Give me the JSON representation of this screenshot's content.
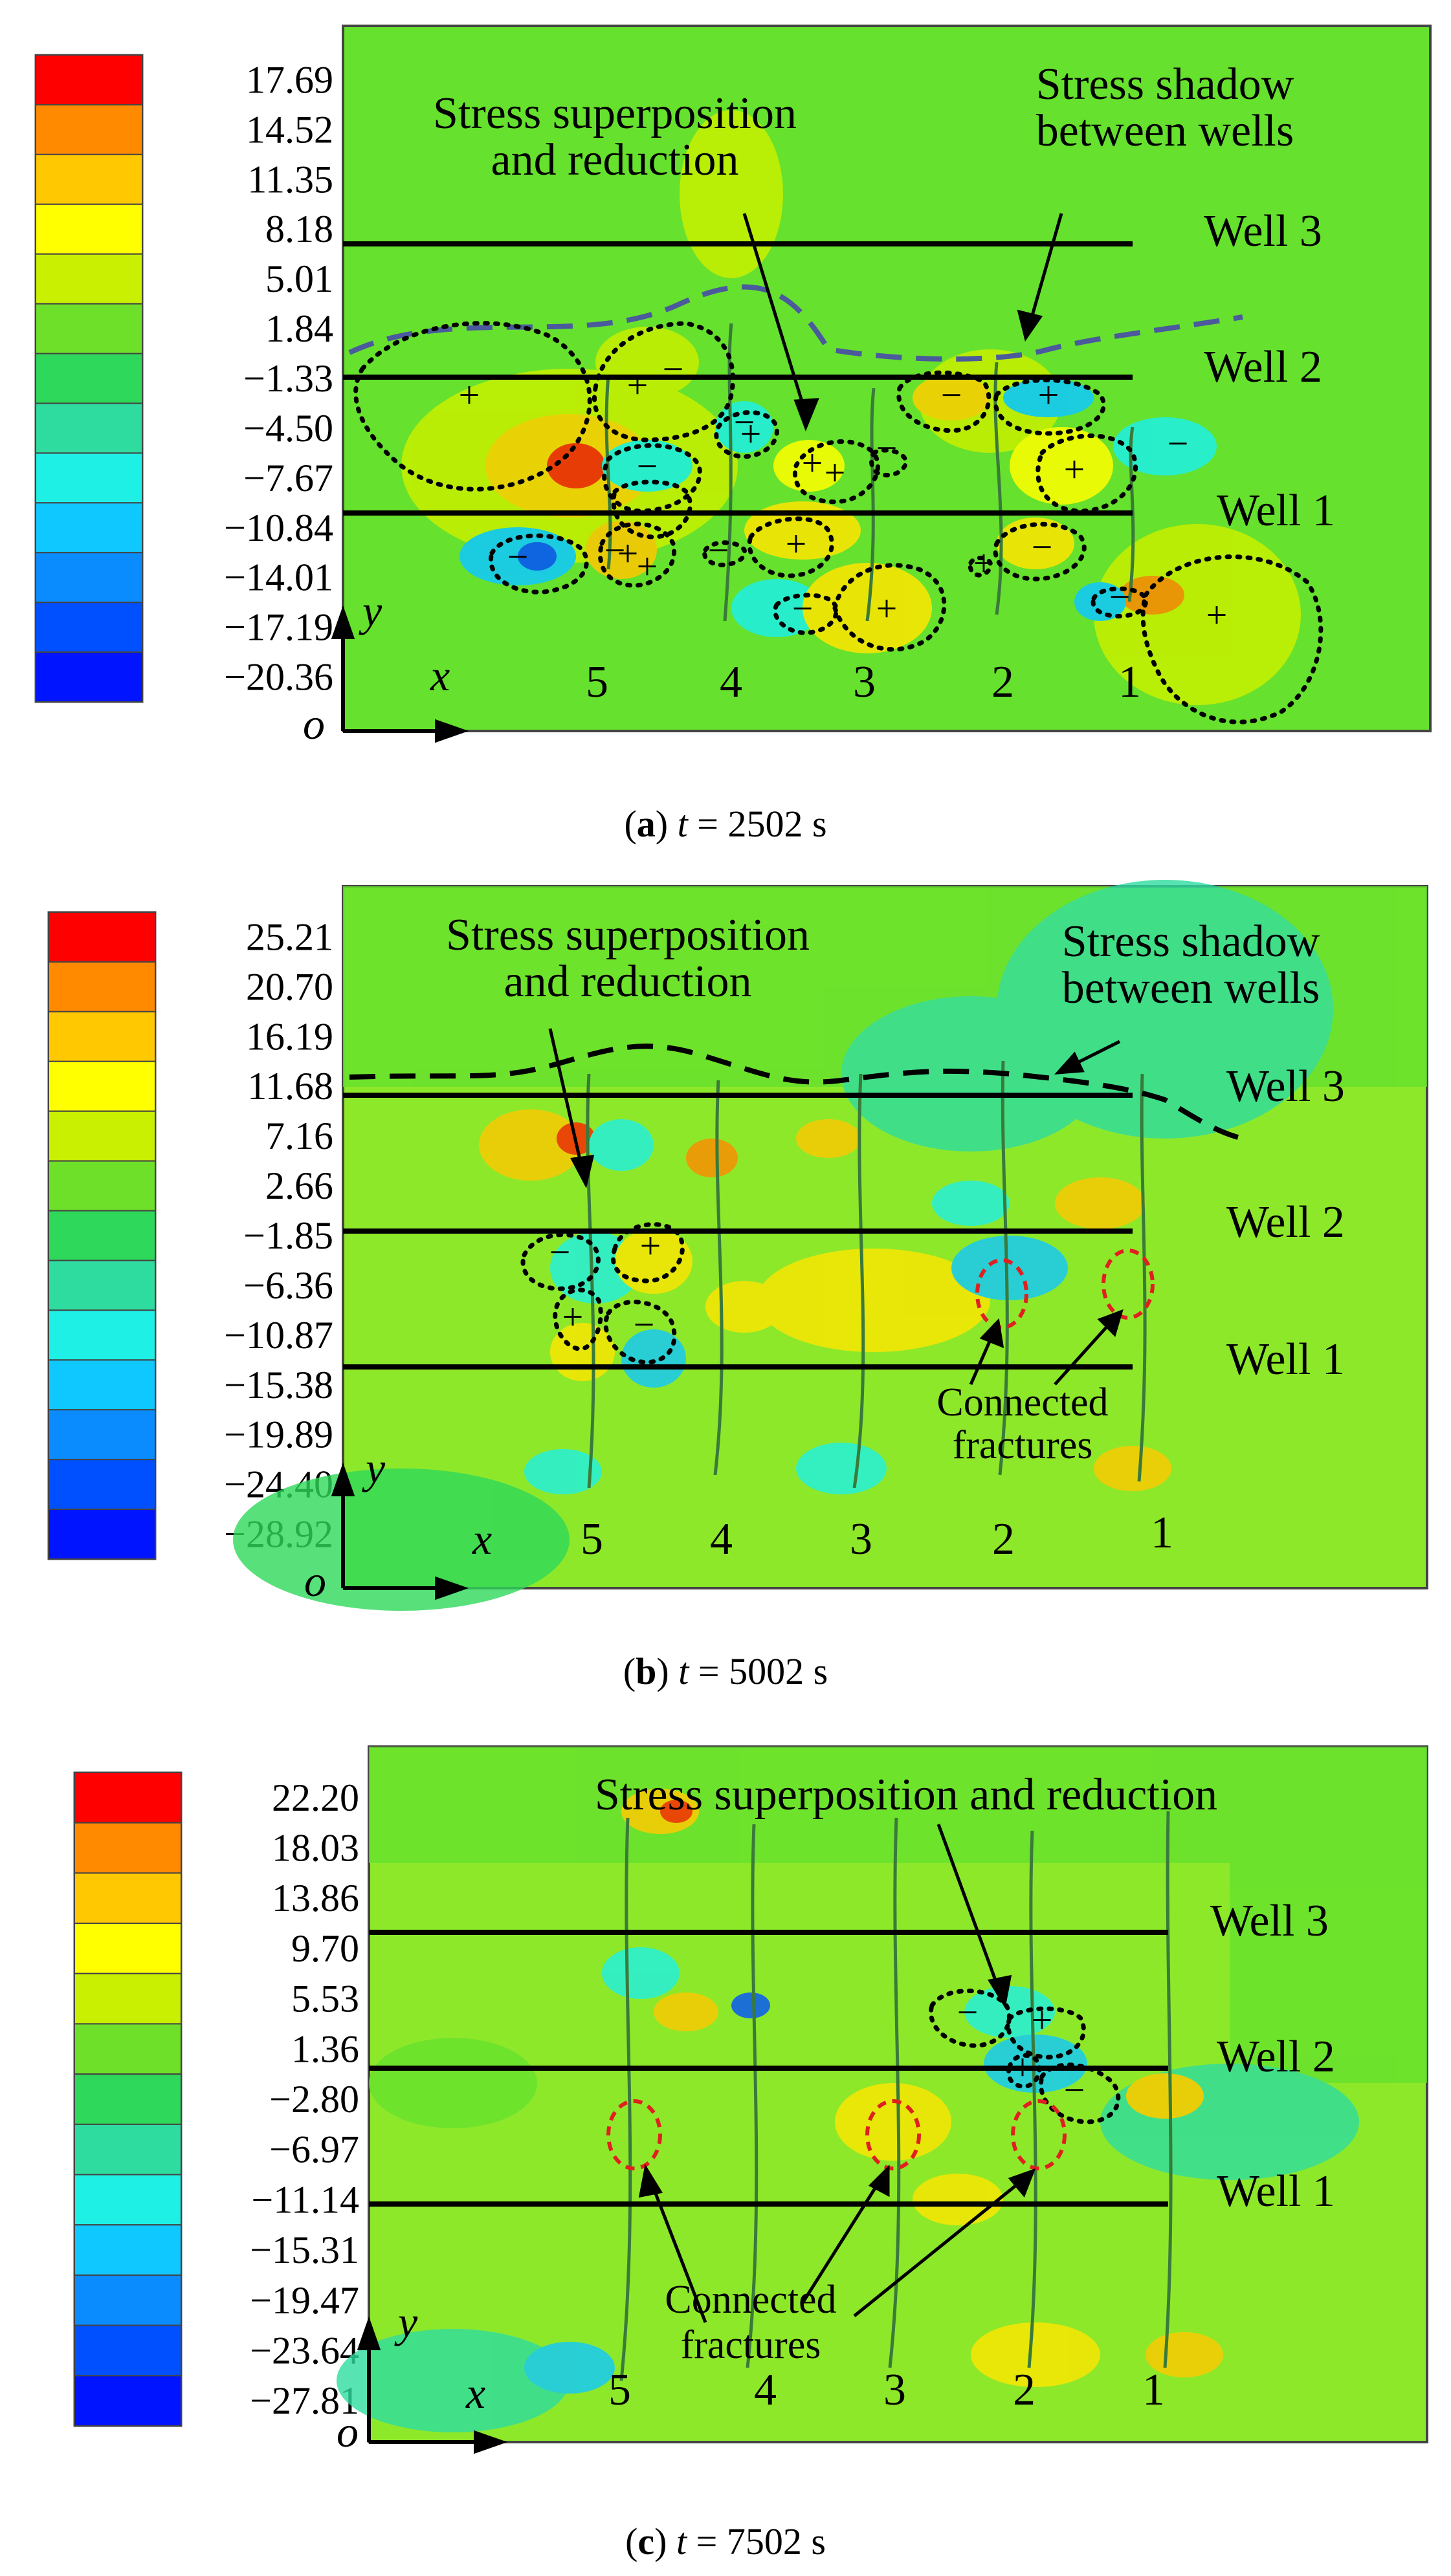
{
  "panels": [
    {
      "caption_letter": "a",
      "caption_var": "t",
      "caption_eq": " = ",
      "caption_value": "2502 s",
      "legend": [
        "17.69",
        "14.52",
        "11.35",
        "8.18",
        "5.01",
        "1.84",
        "−1.33",
        "−4.50",
        "−7.67",
        "−10.84",
        "−14.01",
        "−17.19",
        "−20.36"
      ],
      "wells": [
        "Well 3",
        "Well 2",
        "Well 1"
      ],
      "fracture_numbers": [
        "5",
        "4",
        "3",
        "2",
        "1"
      ],
      "axes": {
        "x": "x",
        "y": "y",
        "o": "o"
      },
      "annotations": [
        "Stress superposition",
        "and reduction",
        "Stress shadow",
        "between wells"
      ],
      "signs": [
        "+",
        "+",
        "−",
        "−",
        "+",
        "−",
        "+",
        "−",
        "+",
        "−",
        "+",
        "−",
        "+",
        "−",
        "+",
        "−",
        "+",
        "−",
        "+",
        "−",
        "+",
        "−",
        "+",
        "−",
        "+"
      ]
    },
    {
      "caption_letter": "b",
      "caption_var": "t",
      "caption_eq": " = ",
      "caption_value": "5002 s",
      "legend": [
        "25.21",
        "20.70",
        "16.19",
        "11.68",
        "7.16",
        "2.66",
        "−1.85",
        "−6.36",
        "−10.87",
        "−15.38",
        "−19.89",
        "−24.40",
        "−28.92"
      ],
      "wells": [
        "Well 3",
        "Well 2",
        "Well 1"
      ],
      "fracture_numbers": [
        "5",
        "4",
        "3",
        "2",
        "1"
      ],
      "axes": {
        "x": "x",
        "y": "y",
        "o": "o"
      },
      "annotations": [
        "Stress superposition",
        "and reduction",
        "Stress shadow",
        "between wells",
        "Connected",
        "fractures"
      ],
      "signs": [
        "−",
        "+",
        "+",
        "−"
      ]
    },
    {
      "caption_letter": "c",
      "caption_var": "t",
      "caption_eq": " = ",
      "caption_value": "7502 s",
      "legend": [
        "22.20",
        "18.03",
        "13.86",
        "9.70",
        "5.53",
        "1.36",
        "−2.80",
        "−6.97",
        "−11.14",
        "−15.31",
        "−19.47",
        "−23.64",
        "−27.81"
      ],
      "wells": [
        "Well 3",
        "Well 2",
        "Well 1"
      ],
      "fracture_numbers": [
        "5",
        "4",
        "3",
        "2",
        "1"
      ],
      "axes": {
        "x": "x",
        "y": "y",
        "o": "o"
      },
      "annotations": [
        "Stress superposition and reduction",
        "Connected",
        "fractures"
      ],
      "signs": [
        "−",
        "+",
        "+",
        "−"
      ]
    }
  ],
  "colors": {
    "scale": [
      "#ff0000",
      "#ff8a00",
      "#ffc800",
      "#ffff00",
      "#c8f000",
      "#6ee02a",
      "#2ed85a",
      "#2edca0",
      "#1ef0e6",
      "#0fc8ff",
      "#0a8cff",
      "#0050ff",
      "#0014ff"
    ],
    "field": "#66e12d",
    "dashed_a": "#4a5a9c",
    "ellipse": "#e02020"
  }
}
